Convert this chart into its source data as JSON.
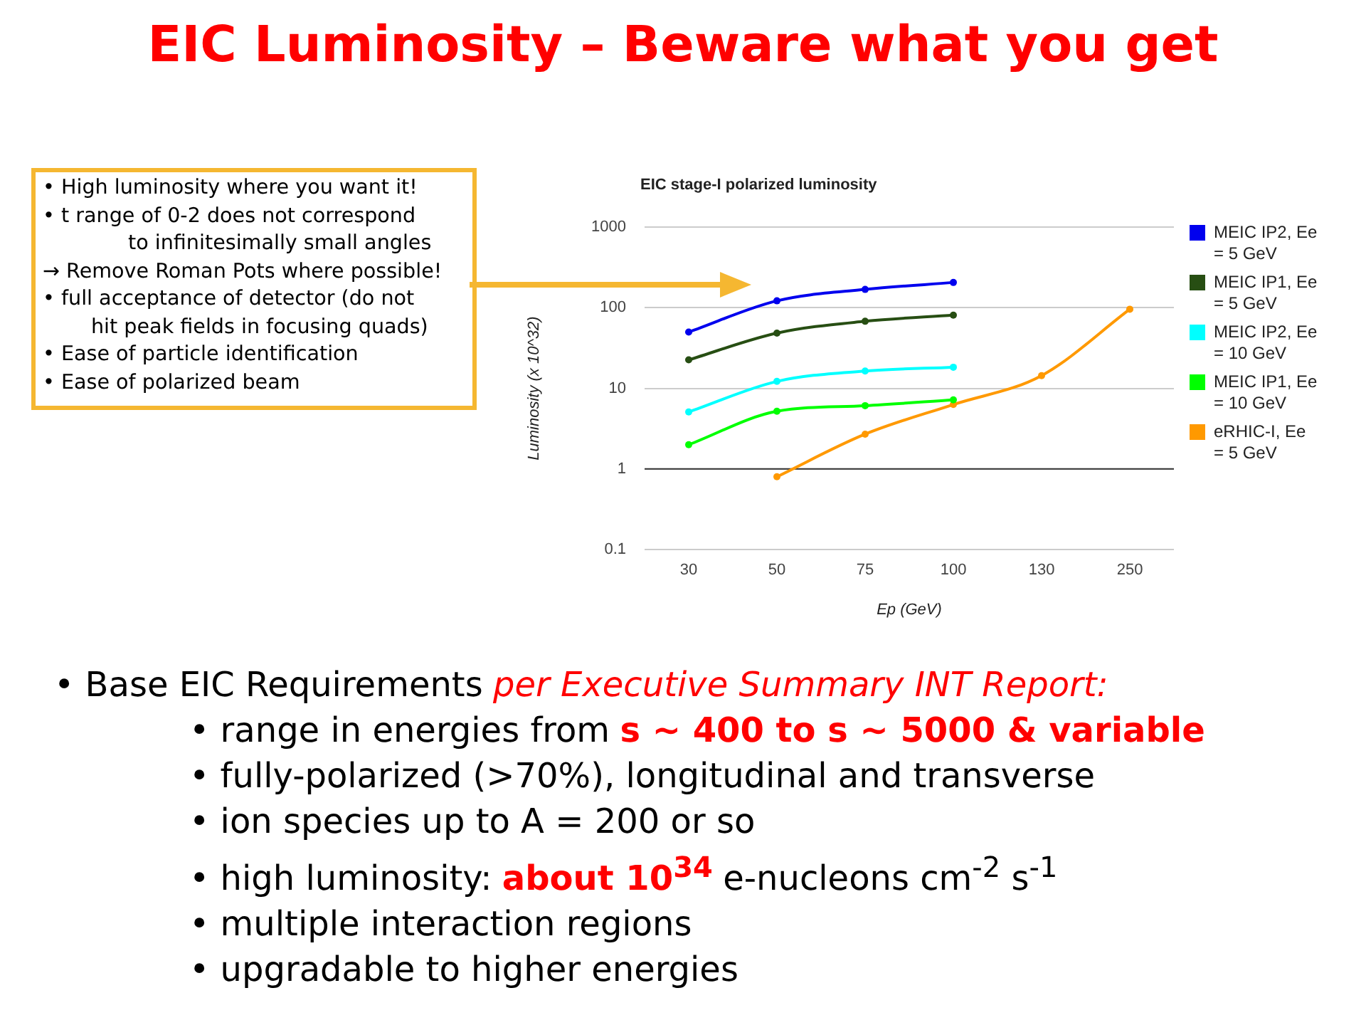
{
  "chart_data": {
    "type": "line",
    "title": "EIC Luminosity – Beware what you get",
    "subtitle": "EIC stage-I polarized luminosity",
    "xlabel": "Ep (GeV)",
    "ylabel": "Luminosity (x 10^32)",
    "categories": [
      "30",
      "50",
      "75",
      "100",
      "130",
      "250"
    ],
    "series": [
      {
        "name": "MEIC IP2, Ee = 5 GeV",
        "color": "#0000ee",
        "values": [
          50,
          122,
          169,
          206,
          null,
          null
        ]
      },
      {
        "name": "MEIC IP1, Ee = 5 GeV",
        "color": "#274e13",
        "values": [
          22.6,
          48.5,
          68,
          81,
          null,
          null
        ]
      },
      {
        "name": "MEIC IP2, Ee = 10 GeV",
        "color": "#00ffff",
        "values": [
          5.1,
          12.2,
          16.4,
          18.3,
          null,
          null
        ]
      },
      {
        "name": "MEIC IP1, Ee = 10 GeV",
        "color": "#00ff00",
        "values": [
          2.0,
          5.2,
          6.1,
          7.2,
          null,
          null
        ]
      },
      {
        "name": "eRHIC-I, Ee = 5 GeV",
        "color": "#ff9900",
        "values": [
          null,
          0.8,
          2.7,
          6.3,
          14.4,
          96
        ]
      }
    ],
    "ylim": [
      0.1,
      1000
    ],
    "yticks": [
      0.1,
      1,
      10,
      100,
      1000
    ],
    "log": "y",
    "grid": "y",
    "legend": "right",
    "marker": "circle",
    "ref_lines": [
      {
        "axis": "y",
        "value": 1,
        "color": "#333333"
      }
    ],
    "annotations": [
      "• High luminosity where you want it!",
      "• t range of 0-2 does not correspond",
      "to infinitesimally small angles",
      "→ Remove Roman Pots where possible!",
      "• full acceptance of detector (do not",
      "hit peak fields in focusing quads)",
      "• Ease of particle identification",
      "• Ease of polarized beam",
      "• Base EIC Requirements",
      "per Executive Summary INT Report:",
      "• range in energies from",
      "s ~ 400 to s ~ 5000 & variable",
      "• fully-polarized (>70%), longitudinal and transverse",
      "• ion species up to A = 200 or so",
      "• high luminosity:",
      "about 10$^{34}$",
      "e-nucleons cm$^{-2}$ s$^{-1}$",
      "• multiple interaction regions",
      "• upgradable to higher energies"
    ]
  }
}
